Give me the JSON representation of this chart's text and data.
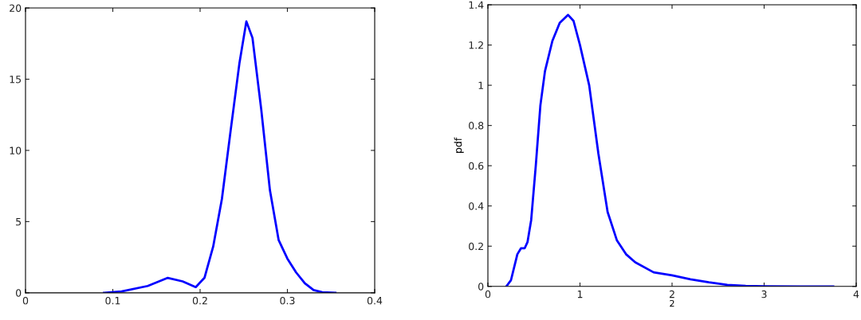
{
  "chart_data": [
    {
      "type": "line",
      "xlim": [
        0,
        0.4
      ],
      "xticks": [
        0,
        0.1,
        0.2,
        0.3,
        0.4
      ],
      "ylim": [
        0,
        20
      ],
      "yticks": [
        0,
        5,
        10,
        15,
        20
      ],
      "grid": false,
      "legend": false,
      "series": [
        {
          "color": "#0000ff",
          "x": [
            0.09,
            0.11,
            0.14,
            0.163,
            0.18,
            0.195,
            0.205,
            0.215,
            0.225,
            0.235,
            0.245,
            0.253,
            0.26,
            0.27,
            0.28,
            0.29,
            0.3,
            0.31,
            0.32,
            0.33,
            0.34,
            0.355
          ],
          "values": [
            0,
            0.1,
            0.48,
            1.05,
            0.8,
            0.4,
            1.05,
            3.25,
            6.6,
            11.4,
            16.1,
            19.06,
            17.9,
            12.9,
            7.2,
            3.7,
            2.4,
            1.43,
            0.67,
            0.19,
            0.04,
            0
          ]
        }
      ]
    },
    {
      "type": "line",
      "xlabel": "2",
      "ylabel": "pdf",
      "xlim": [
        0,
        4
      ],
      "xticks": [
        0,
        1,
        2,
        3,
        4
      ],
      "ylim": [
        0,
        1.4
      ],
      "yticks": [
        0,
        0.2,
        0.4,
        0.6,
        0.8,
        1,
        1.2,
        1.4
      ],
      "grid": false,
      "legend": false,
      "series": [
        {
          "color": "#0000ff",
          "x": [
            0.2,
            0.25,
            0.32,
            0.36,
            0.4,
            0.43,
            0.47,
            0.52,
            0.57,
            0.62,
            0.7,
            0.78,
            0.87,
            0.93,
            1.0,
            1.1,
            1.2,
            1.3,
            1.4,
            1.5,
            1.6,
            1.8,
            2.0,
            2.2,
            2.4,
            2.6,
            2.8,
            3.0,
            3.4,
            3.75
          ],
          "values": [
            0,
            0.03,
            0.16,
            0.19,
            0.19,
            0.22,
            0.33,
            0.6,
            0.9,
            1.07,
            1.22,
            1.31,
            1.35,
            1.32,
            1.2,
            1.0,
            0.66,
            0.37,
            0.23,
            0.16,
            0.12,
            0.07,
            0.055,
            0.035,
            0.02,
            0.008,
            0.003,
            0.001,
            0,
            0
          ]
        }
      ]
    }
  ]
}
